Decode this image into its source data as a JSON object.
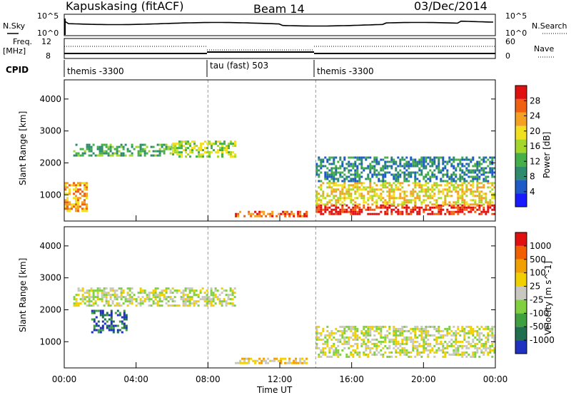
{
  "header": {
    "title": "Kapuskasing (fitACF)",
    "beam": "Beam 14",
    "date": "03/Dec/2014"
  },
  "nsky_panel": {
    "left_label": "N.Sky",
    "right_label": "N.Search",
    "left_ticks": [
      "10^5",
      "10^0"
    ],
    "right_ticks": [
      "10^5",
      "10^0"
    ]
  },
  "freq_panel": {
    "left_label_line1": "Freq.",
    "left_label_line2": "[MHz]",
    "right_label": "Nave",
    "left_ticks": [
      "12",
      "8"
    ],
    "right_ticks": [
      "60",
      "0"
    ]
  },
  "cpid": {
    "label": "CPID",
    "segments": [
      {
        "label": "themis -3300",
        "start_hr": 0,
        "end_hr": 8
      },
      {
        "label": "tau (fast) 503",
        "start_hr": 8,
        "end_hr": 14
      },
      {
        "label": "themis -3300",
        "start_hr": 14,
        "end_hr": 24
      }
    ]
  },
  "chart_data": [
    {
      "type": "heatmap",
      "title": "Power",
      "ylabel": "Slant Range [km]",
      "yticks": [
        "1000",
        "2000",
        "3000",
        "4000"
      ],
      "ylim": [
        180,
        4600
      ],
      "colorbar": {
        "label": "Power [dB]",
        "ticks": [
          "4",
          "8",
          "12",
          "16",
          "20",
          "24",
          "28"
        ],
        "colors": [
          "#1a1aff",
          "#1e5ac8",
          "#2e8b6e",
          "#45b04a",
          "#a5d62a",
          "#f0e020",
          "#f5a020",
          "#f06010",
          "#e01010"
        ]
      },
      "regions": [
        {
          "t0": 0,
          "t1": 1.2,
          "r0": 500,
          "r1": 1400,
          "level": 6
        },
        {
          "t0": 0.5,
          "t1": 6,
          "r0": 2200,
          "r1": 2600,
          "level": 3
        },
        {
          "t0": 6,
          "t1": 9.5,
          "r0": 2200,
          "r1": 2700,
          "level": 4
        },
        {
          "t0": 9.5,
          "t1": 13.5,
          "r0": 300,
          "r1": 500,
          "level": 7
        },
        {
          "t0": 14,
          "t1": 24,
          "r0": 400,
          "r1": 700,
          "level": 8
        },
        {
          "t0": 14,
          "t1": 24,
          "r0": 700,
          "r1": 1400,
          "level": 5
        },
        {
          "t0": 14,
          "t1": 24,
          "r0": 1400,
          "r1": 2200,
          "level": 2
        }
      ]
    },
    {
      "type": "heatmap",
      "title": "Velocity",
      "xlabel": "Time UT",
      "ylabel": "Slant Range [km]",
      "xticks": [
        "00:00",
        "04:00",
        "08:00",
        "12:00",
        "16:00",
        "20:00",
        "00:00"
      ],
      "yticks": [
        "1000",
        "2000",
        "3000",
        "4000"
      ],
      "ylim": [
        180,
        4600
      ],
      "colorbar": {
        "label": "Velocity [m s^-1]",
        "ticks": [
          "1000",
          "500",
          "100",
          "25",
          "-25",
          "-100",
          "-500",
          "-1000"
        ],
        "colors": [
          "#2030c0",
          "#207050",
          "#40a040",
          "#80d040",
          "#c8c8c0",
          "#f0d000",
          "#f0a000",
          "#f06000",
          "#e01010"
        ]
      },
      "regions": [
        {
          "t0": 0.5,
          "t1": 9.5,
          "r0": 2100,
          "r1": 2700,
          "level": 4
        },
        {
          "t0": 1.5,
          "t1": 3.5,
          "r0": 1300,
          "r1": 2000,
          "level": 1
        },
        {
          "t0": 9.5,
          "t1": 13.5,
          "r0": 300,
          "r1": 500,
          "level": 5
        },
        {
          "t0": 14,
          "t1": 24,
          "r0": 500,
          "r1": 1500,
          "level": 4
        }
      ]
    }
  ]
}
